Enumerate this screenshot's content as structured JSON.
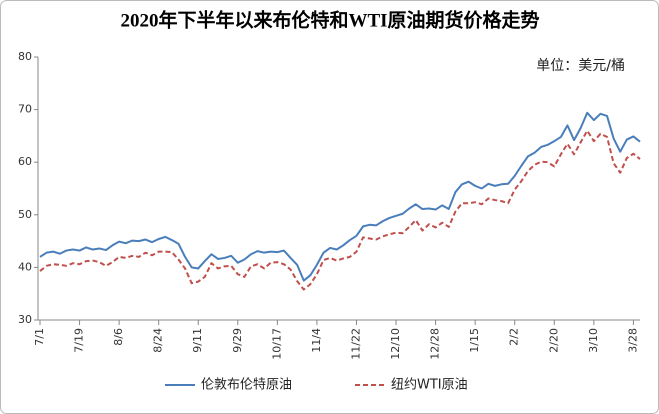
{
  "chart_data": {
    "type": "line",
    "title": "2020年下半年以来布伦特和WTI原油期货价格走势",
    "subtitle": "单位：美元/桶",
    "categories": [
      "7/1",
      null,
      null,
      null,
      null,
      null,
      "7/19",
      null,
      null,
      null,
      null,
      null,
      "8/6",
      null,
      null,
      null,
      null,
      null,
      "8/24",
      null,
      null,
      null,
      null,
      null,
      "9/11",
      null,
      null,
      null,
      null,
      null,
      "9/29",
      null,
      null,
      null,
      null,
      null,
      "10/17",
      null,
      null,
      null,
      null,
      null,
      "11/4",
      null,
      null,
      null,
      null,
      null,
      "11/22",
      null,
      null,
      null,
      null,
      null,
      "12/10",
      null,
      null,
      null,
      null,
      null,
      "12/28",
      null,
      null,
      null,
      null,
      null,
      "1/15",
      null,
      null,
      null,
      null,
      null,
      "2/2",
      null,
      null,
      null,
      null,
      null,
      "2/20",
      null,
      null,
      null,
      null,
      null,
      "3/10",
      null,
      null,
      null,
      null,
      null,
      "3/28",
      null
    ],
    "series": [
      {
        "name": "伦敦布伦特原油",
        "color": "#4a7ebb",
        "dashed": false,
        "values": [
          42.0,
          42.8,
          43.0,
          42.6,
          43.2,
          43.4,
          43.2,
          43.8,
          43.4,
          43.6,
          43.3,
          44.2,
          44.9,
          44.6,
          45.1,
          45.0,
          45.3,
          44.8,
          45.4,
          45.8,
          45.2,
          44.5,
          42.0,
          40.0,
          39.8,
          41.2,
          42.5,
          41.6,
          41.8,
          42.2,
          40.9,
          41.5,
          42.5,
          43.1,
          42.8,
          43.0,
          42.9,
          43.2,
          41.8,
          40.5,
          37.5,
          38.5,
          40.5,
          42.8,
          43.7,
          43.4,
          44.2,
          45.2,
          46.0,
          47.8,
          48.1,
          48.0,
          48.8,
          49.4,
          49.8,
          50.2,
          51.2,
          52.0,
          51.1,
          51.2,
          51.0,
          51.8,
          51.1,
          54.3,
          55.8,
          56.3,
          55.5,
          55.0,
          55.9,
          55.5,
          55.8,
          55.9,
          57.4,
          59.3,
          61.1,
          61.8,
          62.9,
          63.3,
          64.0,
          64.8,
          67.0,
          64.2,
          66.5,
          69.4,
          68.0,
          69.2,
          68.8,
          64.5,
          62.0,
          64.3,
          64.9,
          63.9
        ]
      },
      {
        "name": "纽约WTI原油",
        "color": "#c0504d",
        "dashed": true,
        "values": [
          39.3,
          40.3,
          40.6,
          40.5,
          40.3,
          40.8,
          40.6,
          41.2,
          41.3,
          41.0,
          40.3,
          41.0,
          42.0,
          41.8,
          42.2,
          42.0,
          42.8,
          42.3,
          43.0,
          43.0,
          42.9,
          41.5,
          39.8,
          37.0,
          37.3,
          38.2,
          40.8,
          39.8,
          40.2,
          40.3,
          38.7,
          38.2,
          40.2,
          40.6,
          39.8,
          40.9,
          41.0,
          40.6,
          39.6,
          37.4,
          35.8,
          36.8,
          38.7,
          41.4,
          41.8,
          41.3,
          41.7,
          42.0,
          43.0,
          45.7,
          45.5,
          45.3,
          45.9,
          46.3,
          46.6,
          46.5,
          47.7,
          49.0,
          47.0,
          48.2,
          47.6,
          48.5,
          47.7,
          50.6,
          52.2,
          52.2,
          52.4,
          52.0,
          53.1,
          52.8,
          52.6,
          52.2,
          54.8,
          56.4,
          58.3,
          59.5,
          60.1,
          60.0,
          59.2,
          61.5,
          63.5,
          61.5,
          63.8,
          66.0,
          64.0,
          65.4,
          64.8,
          59.8,
          58.0,
          60.8,
          61.6,
          60.6
        ]
      }
    ],
    "ylim": [
      30,
      80
    ],
    "yticks": [
      30,
      40,
      50,
      60,
      70,
      80
    ],
    "grid": false
  }
}
